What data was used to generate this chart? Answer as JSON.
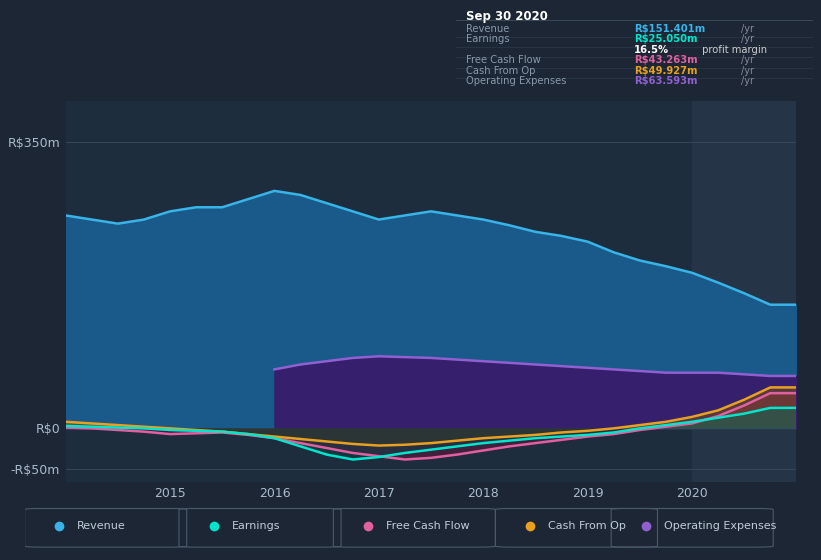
{
  "bg_color": "#1c2634",
  "plot_bg_color": "#1e2d3d",
  "highlight_bg_color": "#263447",
  "title": "Sep 30 2020",
  "ylim": [
    -65,
    400
  ],
  "ytick_positions": [
    -50,
    0,
    350
  ],
  "ytick_labels": [
    "-R$50m",
    "R$0",
    "R$350m"
  ],
  "xtick_positions": [
    2015,
    2016,
    2017,
    2018,
    2019,
    2020
  ],
  "xtick_labels": [
    "2015",
    "2016",
    "2017",
    "2018",
    "2019",
    "2020"
  ],
  "xlim": [
    2014.0,
    2021.0
  ],
  "highlight_start": 2020.0,
  "legend_items": [
    {
      "label": "Revenue",
      "color": "#38b4e8"
    },
    {
      "label": "Earnings",
      "color": "#00e5cc"
    },
    {
      "label": "Free Cash Flow",
      "color": "#e060a0"
    },
    {
      "label": "Cash From Op",
      "color": "#e8a020"
    },
    {
      "label": "Operating Expenses",
      "color": "#9060d0"
    }
  ],
  "info_box": {
    "title": "Sep 30 2020",
    "rows": [
      {
        "label": "Revenue",
        "value": "R$151.401m",
        "value_color": "#38b4e8",
        "suffix": "/yr",
        "extra": null
      },
      {
        "label": "Earnings",
        "value": "R$25.050m",
        "value_color": "#00e5cc",
        "suffix": "/yr",
        "extra": null
      },
      {
        "label": "",
        "value": "16.5%",
        "value_color": "#ffffff",
        "suffix": " profit margin",
        "extra": "bold"
      },
      {
        "label": "Free Cash Flow",
        "value": "R$43.263m",
        "value_color": "#e060a0",
        "suffix": "/yr",
        "extra": null
      },
      {
        "label": "Cash From Op",
        "value": "R$49.927m",
        "value_color": "#e8a020",
        "suffix": "/yr",
        "extra": null
      },
      {
        "label": "Operating Expenses",
        "value": "R$63.593m",
        "value_color": "#9060d0",
        "suffix": "/yr",
        "extra": null
      }
    ]
  },
  "series": {
    "x": [
      2014.0,
      2014.25,
      2014.5,
      2014.75,
      2015.0,
      2015.25,
      2015.5,
      2015.75,
      2016.0,
      2016.25,
      2016.5,
      2016.75,
      2017.0,
      2017.25,
      2017.5,
      2017.75,
      2018.0,
      2018.25,
      2018.5,
      2018.75,
      2019.0,
      2019.25,
      2019.5,
      2019.75,
      2020.0,
      2020.25,
      2020.5,
      2020.75,
      2021.0
    ],
    "revenue": [
      260,
      255,
      250,
      255,
      265,
      270,
      270,
      280,
      290,
      285,
      275,
      265,
      255,
      260,
      265,
      260,
      255,
      248,
      240,
      235,
      228,
      215,
      205,
      198,
      190,
      178,
      165,
      151,
      151
    ],
    "earnings": [
      3,
      2,
      1,
      0,
      -2,
      -3,
      -4,
      -7,
      -12,
      -22,
      -32,
      -38,
      -35,
      -30,
      -26,
      -22,
      -18,
      -15,
      -12,
      -10,
      -8,
      -5,
      0,
      4,
      8,
      13,
      18,
      25,
      25
    ],
    "free_cash_flow": [
      1,
      0,
      -2,
      -4,
      -7,
      -6,
      -5,
      -8,
      -12,
      -18,
      -24,
      -30,
      -34,
      -38,
      -36,
      -32,
      -27,
      -22,
      -18,
      -14,
      -10,
      -7,
      -2,
      2,
      6,
      15,
      28,
      43,
      43
    ],
    "cash_from_op": [
      8,
      6,
      4,
      2,
      0,
      -2,
      -4,
      -7,
      -10,
      -13,
      -16,
      -19,
      -21,
      -20,
      -18,
      -15,
      -12,
      -10,
      -8,
      -5,
      -3,
      0,
      4,
      8,
      14,
      22,
      35,
      50,
      50
    ],
    "operating_expenses": [
      0,
      0,
      0,
      0,
      0,
      0,
      0,
      0,
      72,
      78,
      82,
      86,
      88,
      87,
      86,
      84,
      82,
      80,
      78,
      76,
      74,
      72,
      70,
      68,
      68,
      68,
      66,
      64,
      64
    ]
  }
}
